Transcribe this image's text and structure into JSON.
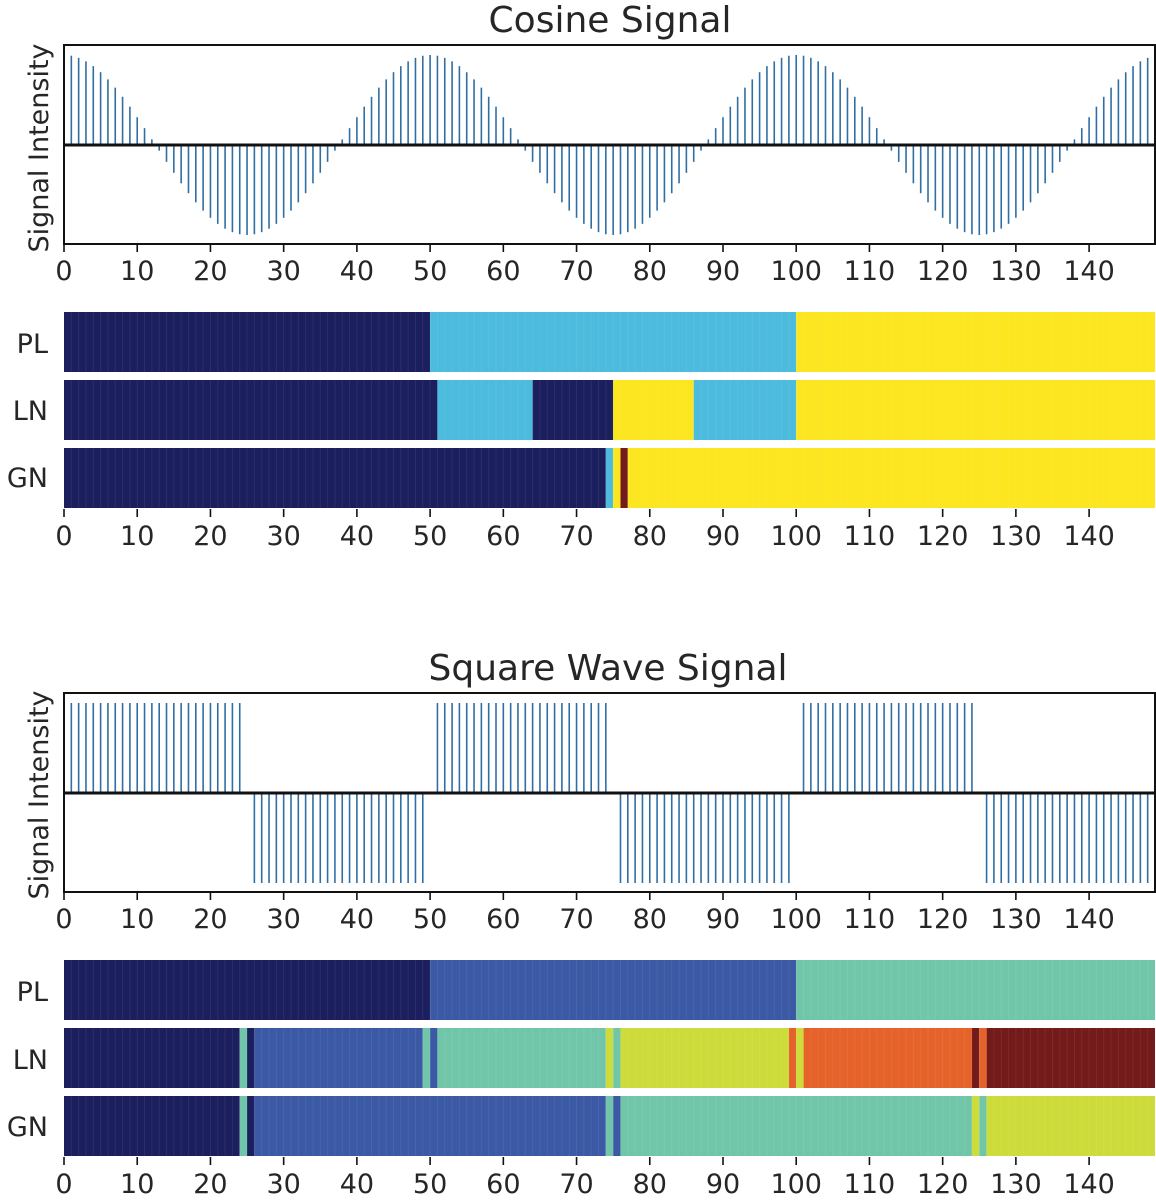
{
  "colors": {
    "stem": "#2f6fa4",
    "baseline": "#111111",
    "navy": "#1c1f5e",
    "blue": "#3b59a5",
    "cyan": "#4cbbdd",
    "teal": "#71c6a9",
    "lime": "#cddc3a",
    "yellow": "#fce61f",
    "orange": "#e5622a",
    "darkred": "#731a1a"
  },
  "x_ticks": [
    "0",
    "10",
    "20",
    "30",
    "40",
    "50",
    "60",
    "70",
    "80",
    "90",
    "100",
    "110",
    "120",
    "130",
    "140"
  ],
  "chart_data": [
    {
      "type": "bar",
      "subtype": "stem",
      "title": "Cosine Signal",
      "ylabel": "Signal Intensity",
      "waveform": "cosine",
      "period": 50,
      "x": {
        "start": 0,
        "end": 148,
        "step": 1
      },
      "xlim": [
        0,
        149
      ],
      "ylim": [
        -1,
        1
      ],
      "y_ticks_shown": false
    },
    {
      "type": "heatmap",
      "rows": [
        {
          "label": "PL",
          "segments": [
            {
              "start": 0,
              "end": 50,
              "color": "navy"
            },
            {
              "start": 50,
              "end": 100,
              "color": "cyan"
            },
            {
              "start": 100,
              "end": 149,
              "color": "yellow"
            }
          ]
        },
        {
          "label": "LN",
          "segments": [
            {
              "start": 0,
              "end": 51,
              "color": "navy"
            },
            {
              "start": 51,
              "end": 64,
              "color": "cyan"
            },
            {
              "start": 64,
              "end": 75,
              "color": "navy"
            },
            {
              "start": 75,
              "end": 86,
              "color": "yellow"
            },
            {
              "start": 86,
              "end": 100,
              "color": "cyan"
            },
            {
              "start": 100,
              "end": 149,
              "color": "yellow"
            }
          ]
        },
        {
          "label": "GN",
          "segments": [
            {
              "start": 0,
              "end": 74,
              "color": "navy"
            },
            {
              "start": 74,
              "end": 75,
              "color": "cyan"
            },
            {
              "start": 75,
              "end": 76,
              "color": "yellow"
            },
            {
              "start": 76,
              "end": 77,
              "color": "darkred"
            },
            {
              "start": 77,
              "end": 149,
              "color": "yellow"
            }
          ]
        }
      ],
      "xlim": [
        0,
        149
      ]
    },
    {
      "type": "bar",
      "subtype": "stem",
      "title": "Square Wave Signal",
      "ylabel": "Signal Intensity",
      "waveform": "square",
      "period": 50,
      "x": {
        "start": 0,
        "end": 148,
        "step": 1
      },
      "xlim": [
        0,
        149
      ],
      "ylim": [
        -1,
        1
      ],
      "y_ticks_shown": false
    },
    {
      "type": "heatmap",
      "rows": [
        {
          "label": "PL",
          "segments": [
            {
              "start": 0,
              "end": 50,
              "color": "navy"
            },
            {
              "start": 50,
              "end": 100,
              "color": "blue"
            },
            {
              "start": 100,
              "end": 149,
              "color": "teal"
            }
          ]
        },
        {
          "label": "LN",
          "segments": [
            {
              "start": 0,
              "end": 24,
              "color": "navy"
            },
            {
              "start": 24,
              "end": 25,
              "color": "teal"
            },
            {
              "start": 25,
              "end": 26,
              "color": "navy"
            },
            {
              "start": 26,
              "end": 49,
              "color": "blue"
            },
            {
              "start": 49,
              "end": 50,
              "color": "teal"
            },
            {
              "start": 50,
              "end": 51,
              "color": "blue"
            },
            {
              "start": 51,
              "end": 74,
              "color": "teal"
            },
            {
              "start": 74,
              "end": 75,
              "color": "lime"
            },
            {
              "start": 75,
              "end": 76,
              "color": "teal"
            },
            {
              "start": 76,
              "end": 99,
              "color": "lime"
            },
            {
              "start": 99,
              "end": 100,
              "color": "orange"
            },
            {
              "start": 100,
              "end": 101,
              "color": "lime"
            },
            {
              "start": 101,
              "end": 124,
              "color": "orange"
            },
            {
              "start": 124,
              "end": 125,
              "color": "darkred"
            },
            {
              "start": 125,
              "end": 126,
              "color": "orange"
            },
            {
              "start": 126,
              "end": 149,
              "color": "darkred"
            }
          ]
        },
        {
          "label": "GN",
          "segments": [
            {
              "start": 0,
              "end": 24,
              "color": "navy"
            },
            {
              "start": 24,
              "end": 25,
              "color": "teal"
            },
            {
              "start": 25,
              "end": 26,
              "color": "navy"
            },
            {
              "start": 26,
              "end": 74,
              "color": "blue"
            },
            {
              "start": 74,
              "end": 75,
              "color": "teal"
            },
            {
              "start": 75,
              "end": 76,
              "color": "blue"
            },
            {
              "start": 76,
              "end": 124,
              "color": "teal"
            },
            {
              "start": 124,
              "end": 125,
              "color": "lime"
            },
            {
              "start": 125,
              "end": 126,
              "color": "teal"
            },
            {
              "start": 126,
              "end": 149,
              "color": "lime"
            }
          ]
        }
      ],
      "xlim": [
        0,
        149
      ]
    }
  ]
}
